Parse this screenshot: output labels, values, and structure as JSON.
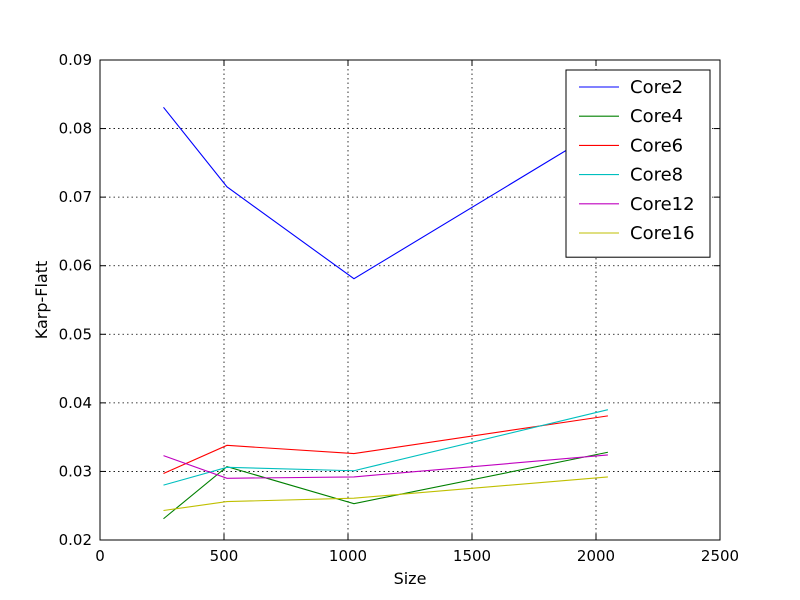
{
  "chart_data": {
    "type": "line",
    "title": "",
    "xlabel": "Size",
    "ylabel": "Karp-Flatt",
    "xlim": [
      0,
      2500
    ],
    "ylim": [
      0.02,
      0.09
    ],
    "xticks": [
      0,
      500,
      1000,
      1500,
      2000,
      2500
    ],
    "yticks": [
      0.02,
      0.03,
      0.04,
      0.05,
      0.06,
      0.07,
      0.08,
      0.09
    ],
    "xtick_labels": [
      "0",
      "500",
      "1000",
      "1500",
      "2000",
      "2500"
    ],
    "ytick_labels": [
      "0.02",
      "0.03",
      "0.04",
      "0.05",
      "0.06",
      "0.07",
      "0.08",
      "0.09"
    ],
    "grid": true,
    "legend_position": "top-right",
    "x": [
      256,
      512,
      1024,
      2048
    ],
    "series": [
      {
        "name": "Core2",
        "color": "#0000ff",
        "values": [
          0.0831,
          0.0715,
          0.0581,
          0.0805
        ]
      },
      {
        "name": "Core4",
        "color": "#008000",
        "values": [
          0.0231,
          0.0307,
          0.0253,
          0.0328
        ]
      },
      {
        "name": "Core6",
        "color": "#ff0000",
        "values": [
          0.0297,
          0.0338,
          0.0326,
          0.0381
        ]
      },
      {
        "name": "Core8",
        "color": "#00bfbf",
        "values": [
          0.028,
          0.0306,
          0.0301,
          0.039
        ]
      },
      {
        "name": "Core12",
        "color": "#bf00bf",
        "values": [
          0.0323,
          0.029,
          0.0292,
          0.0324
        ]
      },
      {
        "name": "Core16",
        "color": "#bfbf00",
        "values": [
          0.0243,
          0.0256,
          0.0261,
          0.0292
        ]
      }
    ]
  }
}
